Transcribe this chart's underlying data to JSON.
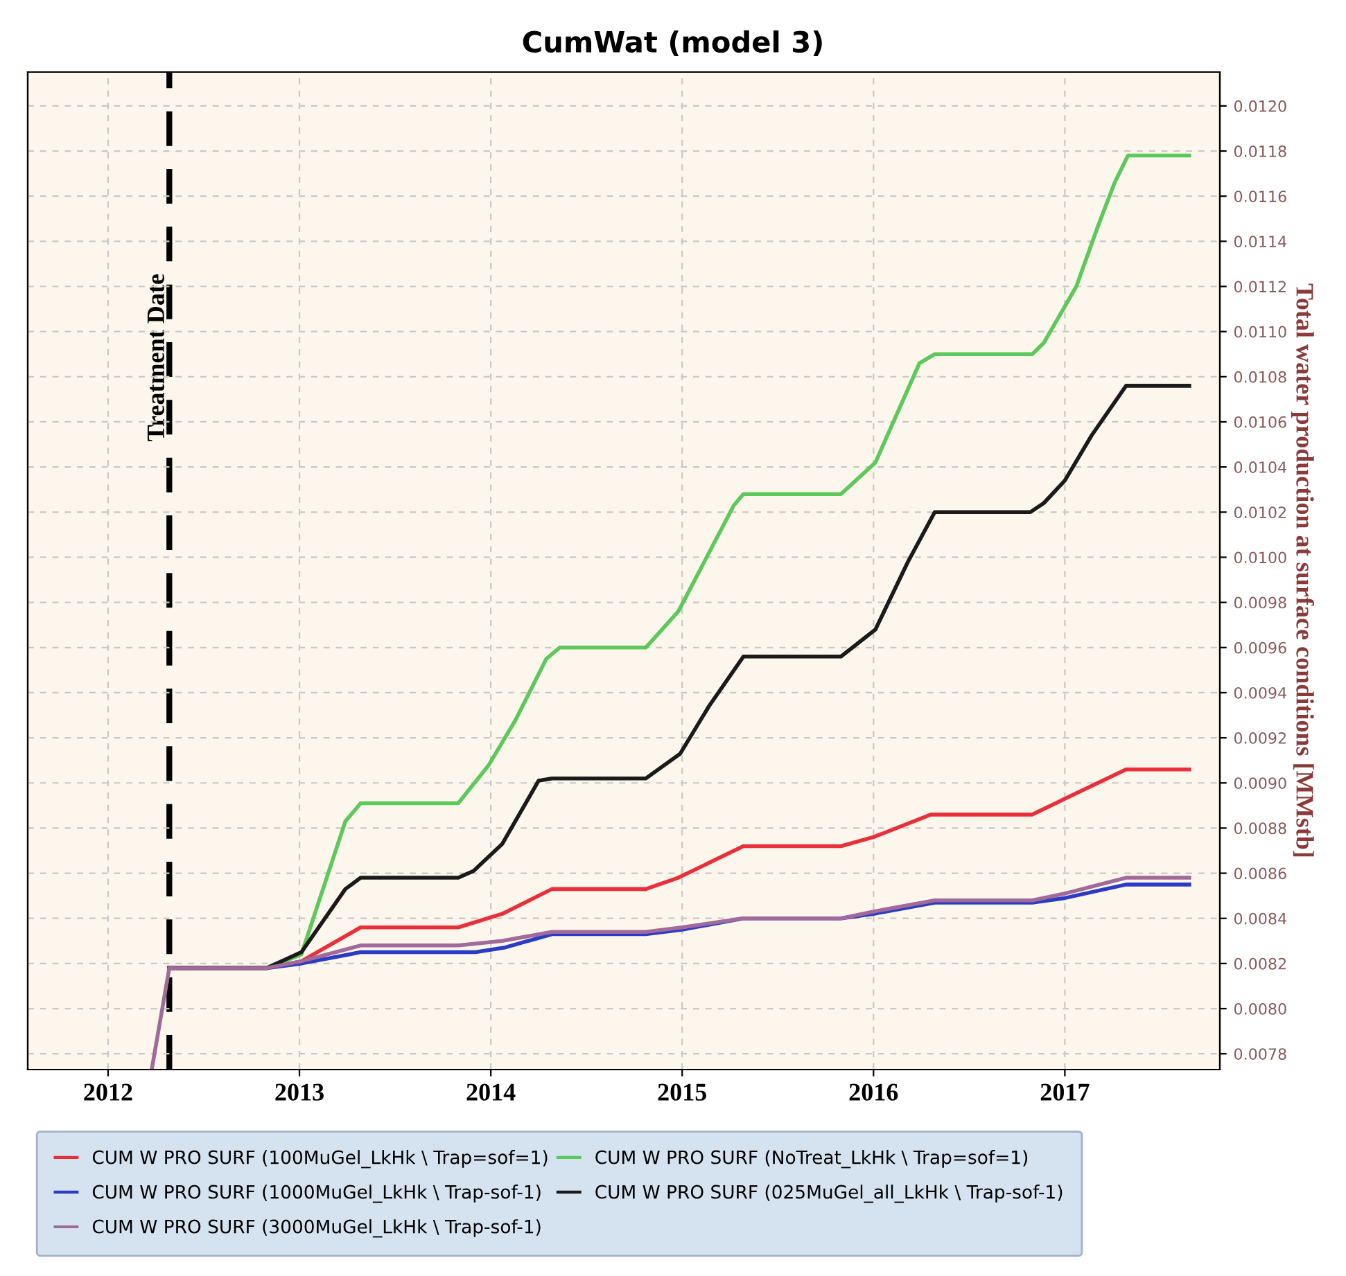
{
  "chart_data": {
    "type": "line",
    "title": "CumWat (model 3)",
    "y2label": "Total water production at surface conditions [MMstb]",
    "xlim": [
      2011.58,
      2017.81
    ],
    "xticks": [
      2012,
      2013,
      2014,
      2015,
      2016,
      2017
    ],
    "y2lim": [
      0.00773,
      0.01215
    ],
    "y2ticks": [
      {
        "value": 0.0078,
        "label": "0.0078"
      },
      {
        "value": 0.008,
        "label": "0.0080"
      },
      {
        "value": 0.0082,
        "label": "0.0082"
      },
      {
        "value": 0.0084,
        "label": "0.0084"
      },
      {
        "value": 0.0086,
        "label": "0.0086"
      },
      {
        "value": 0.0088,
        "label": "0.0088"
      },
      {
        "value": 0.009,
        "label": "0.0090"
      },
      {
        "value": 0.0092,
        "label": "0.0092"
      },
      {
        "value": 0.0094,
        "label": "0.0094"
      },
      {
        "value": 0.0096,
        "label": "0.0096"
      },
      {
        "value": 0.0098,
        "label": "0.0098"
      },
      {
        "value": 0.01,
        "label": "0.0100"
      },
      {
        "value": 0.0102,
        "label": "0.0102"
      },
      {
        "value": 0.0104,
        "label": "0.0104"
      },
      {
        "value": 0.0106,
        "label": "0.0106"
      },
      {
        "value": 0.0108,
        "label": "0.0108"
      },
      {
        "value": 0.011,
        "label": "0.0110"
      },
      {
        "value": 0.0112,
        "label": "0.0112"
      },
      {
        "value": 0.0114,
        "label": "0.0114"
      },
      {
        "value": 0.0116,
        "label": "0.0116"
      },
      {
        "value": 0.0118,
        "label": "0.0118"
      },
      {
        "value": 0.012,
        "label": "0.0120"
      }
    ],
    "grid": true,
    "legend": "bottom",
    "marker": "none",
    "line_style": "solid",
    "ref_lines": [
      {
        "axis": "x",
        "value": 2012.32,
        "label": "Treatment Date",
        "color": "#000000",
        "line_style": "dashed"
      }
    ],
    "series": [
      {
        "name": "CUM W PRO SURF (100MuGel_LkHk \\ Trap=sof=1)",
        "color": "#e8303a",
        "axis": "y2",
        "x": [
          2012.32,
          2012.83,
          2013.01,
          2013.32,
          2013.83,
          2014.06,
          2014.32,
          2014.81,
          2014.98,
          2015.32,
          2015.83,
          2016.0,
          2016.3,
          2016.83,
          2017.0,
          2017.32,
          2017.65
        ],
        "values": [
          0.00818,
          0.00818,
          0.00821,
          0.00836,
          0.00836,
          0.00842,
          0.00853,
          0.00853,
          0.00858,
          0.00872,
          0.00872,
          0.00876,
          0.00886,
          0.00886,
          0.00893,
          0.00906,
          0.00906
        ]
      },
      {
        "name": "CUM W PRO SURF (NoTreat_LkHk \\ Trap=sof=1)",
        "color": "#5cc95a",
        "axis": "y2",
        "x": [
          2012.32,
          2012.83,
          2013.01,
          2013.24,
          2013.32,
          2013.83,
          2013.99,
          2014.13,
          2014.29,
          2014.36,
          2014.81,
          2014.98,
          2015.27,
          2015.32,
          2015.83,
          2016.01,
          2016.24,
          2016.32,
          2016.83,
          2016.89,
          2017.06,
          2017.17,
          2017.26,
          2017.33,
          2017.65
        ],
        "values": [
          0.00818,
          0.00818,
          0.00824,
          0.00883,
          0.00891,
          0.00891,
          0.00908,
          0.00928,
          0.00955,
          0.0096,
          0.0096,
          0.00976,
          0.01023,
          0.01028,
          0.01028,
          0.01042,
          0.01086,
          0.0109,
          0.0109,
          0.01095,
          0.0112,
          0.01146,
          0.01166,
          0.01178,
          0.01178
        ]
      },
      {
        "name": "CUM W PRO SURF (1000MuGel_LkHk \\ Trap-sof-1)",
        "color": "#2b3cc4",
        "axis": "y2",
        "x": [
          2012.32,
          2012.83,
          2013.01,
          2013.32,
          2013.92,
          2014.07,
          2014.32,
          2014.81,
          2015.0,
          2015.32,
          2015.83,
          2016.0,
          2016.32,
          2016.83,
          2017.0,
          2017.32,
          2017.65
        ],
        "values": [
          0.00818,
          0.00818,
          0.0082,
          0.00825,
          0.00825,
          0.00827,
          0.00833,
          0.00833,
          0.00835,
          0.0084,
          0.0084,
          0.00842,
          0.00847,
          0.00847,
          0.00849,
          0.00855,
          0.00855
        ]
      },
      {
        "name": "CUM W PRO SURF (025MuGel_all_LkHk \\ Trap-sof-1)",
        "color": "#1a1a1a",
        "axis": "y2",
        "x": [
          2012.32,
          2012.83,
          2013.01,
          2013.24,
          2013.32,
          2013.83,
          2013.91,
          2014.06,
          2014.25,
          2014.32,
          2014.81,
          2014.99,
          2015.14,
          2015.32,
          2015.83,
          2016.01,
          2016.18,
          2016.32,
          2016.82,
          2016.89,
          2017.0,
          2017.14,
          2017.32,
          2017.65
        ],
        "values": [
          0.00818,
          0.00818,
          0.00825,
          0.00853,
          0.00858,
          0.00858,
          0.00861,
          0.00873,
          0.00901,
          0.00902,
          0.00902,
          0.00913,
          0.00934,
          0.00956,
          0.00956,
          0.00968,
          0.00998,
          0.0102,
          0.0102,
          0.01024,
          0.01034,
          0.01054,
          0.01076,
          0.01076
        ]
      },
      {
        "name": "CUM W PRO SURF (3000MuGel_LkHk \\ Trap-sof-1)",
        "color": "#a06a9a",
        "axis": "y2",
        "x": [
          2012.23,
          2012.32,
          2012.83,
          2013.01,
          2013.32,
          2013.83,
          2014.06,
          2014.32,
          2014.81,
          2015.0,
          2015.32,
          2015.83,
          2016.0,
          2016.32,
          2016.83,
          2017.0,
          2017.32,
          2017.65
        ],
        "values": [
          0.00774,
          0.00818,
          0.00818,
          0.00821,
          0.00828,
          0.00828,
          0.0083,
          0.00834,
          0.00834,
          0.00836,
          0.0084,
          0.0084,
          0.00843,
          0.00848,
          0.00848,
          0.00851,
          0.00858,
          0.00858
        ]
      }
    ]
  }
}
